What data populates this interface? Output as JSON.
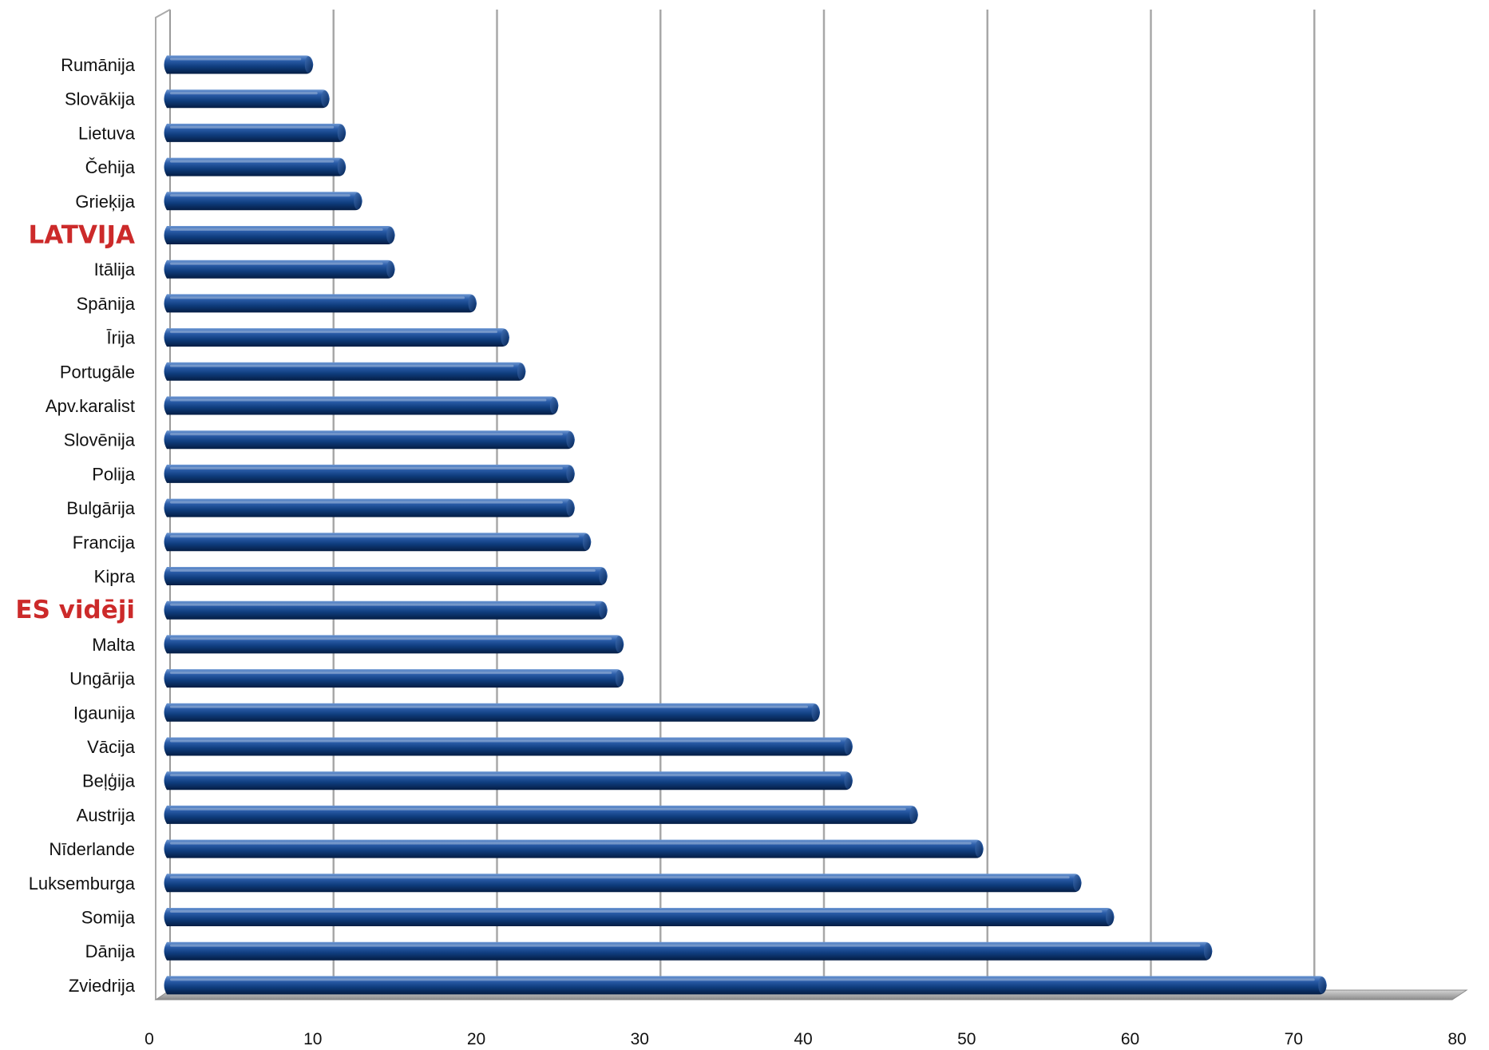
{
  "chart_data": {
    "type": "bar",
    "orientation": "horizontal",
    "style": "3d-cylinder",
    "categories": [
      "Rumānija",
      "Slovākija",
      "Lietuva",
      "Čehija",
      "Grieķija",
      "LATVIJA",
      "Itālija",
      "Spānija",
      "Īrija",
      "Portugāle",
      "Apv.karalist",
      "Slovēnija",
      "Polija",
      "Bulgārija",
      "Francija",
      "Kipra",
      "ES vidēji",
      "Malta",
      "Ungārija",
      "Igaunija",
      "Vācija",
      "Beļģija",
      "Austrija",
      "Nīderlande",
      "Luksemburga",
      "Somija",
      "Dānija",
      "Zviedrija"
    ],
    "values": [
      9,
      10,
      11,
      11,
      12,
      14,
      14,
      19,
      21,
      22,
      24,
      25,
      25,
      25,
      26,
      27,
      27,
      28,
      28,
      40,
      42,
      42,
      46,
      50,
      56,
      58,
      64,
      71
    ],
    "highlighted": [
      "LATVIJA",
      "ES vidēji"
    ],
    "xlim": [
      0,
      80
    ],
    "xticks": [
      "0",
      "10",
      "20",
      "30",
      "40",
      "50",
      "60",
      "70",
      "80"
    ],
    "grid": "vertical",
    "title": "",
    "xlabel": "",
    "ylabel": "",
    "colors": {
      "bar": "#0f3d7e",
      "bar_light": "#5a86c6",
      "bar_dark": "#051d44",
      "highlight_label": "#cc2a2a",
      "grid": "#9a9a9a"
    }
  }
}
